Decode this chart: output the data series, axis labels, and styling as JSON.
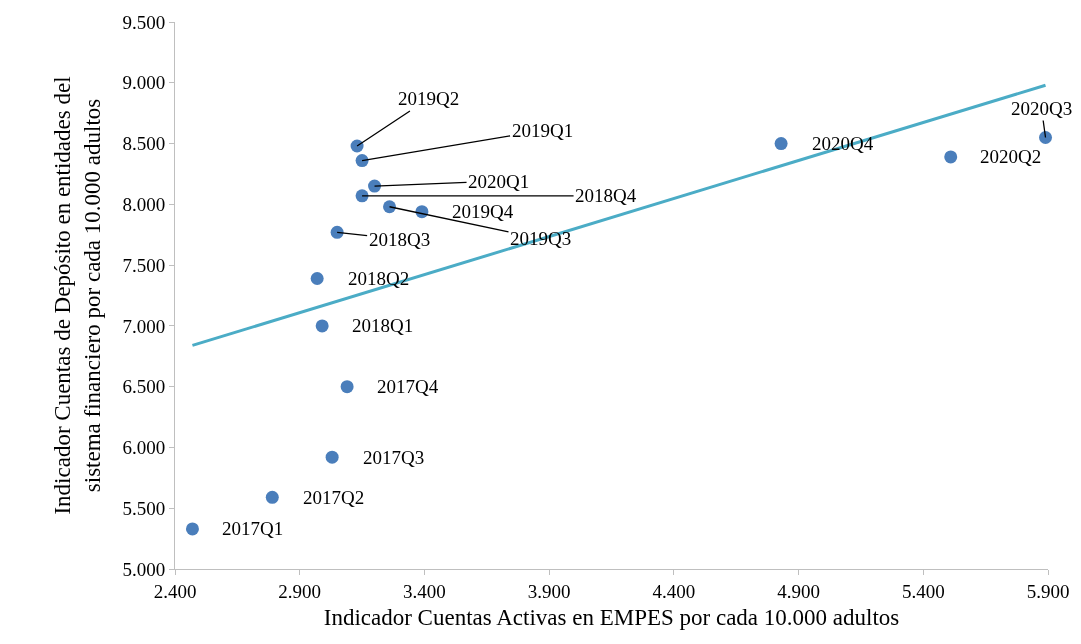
{
  "chart_data": {
    "type": "scatter",
    "xlabel": "Indicador Cuentas Activas en EMPES por cada 10.000 adultos",
    "ylabel": "Indicador Cuentas de Depósito en entidades del\nsistema financiero por cada 10.000 adultos",
    "xlim": [
      2.4,
      5.9
    ],
    "ylim": [
      5,
      9.5
    ],
    "xticks": [
      {
        "value": 2.4,
        "label": "2.400"
      },
      {
        "value": 2.9,
        "label": "2.900"
      },
      {
        "value": 3.4,
        "label": "3.400"
      },
      {
        "value": 3.9,
        "label": "3.900"
      },
      {
        "value": 4.4,
        "label": "4.400"
      },
      {
        "value": 4.9,
        "label": "4.900"
      },
      {
        "value": 5.4,
        "label": "5.400"
      },
      {
        "value": 5.9,
        "label": "5.900"
      }
    ],
    "yticks": [
      {
        "value": 5,
        "label": "5.000"
      },
      {
        "value": 5.5,
        "label": "5.500"
      },
      {
        "value": 6,
        "label": "6.000"
      },
      {
        "value": 6.5,
        "label": "6.500"
      },
      {
        "value": 7,
        "label": "7.000"
      },
      {
        "value": 7.5,
        "label": "7.500"
      },
      {
        "value": 8,
        "label": "8.000"
      },
      {
        "value": 8.5,
        "label": "8.500"
      },
      {
        "value": 9,
        "label": "9.000"
      },
      {
        "value": 9.5,
        "label": "9.500"
      }
    ],
    "grid": false,
    "marker": "circle",
    "series": [
      {
        "color": "#4a7ebb",
        "x": [
          2.47,
          2.79,
          3.03,
          3.09,
          2.99,
          2.97,
          3.05,
          3.15,
          3.15,
          3.13,
          3.26,
          3.39,
          3.2,
          5.51,
          5.89,
          4.83
        ],
        "values": [
          5.33,
          5.59,
          5.92,
          6.5,
          7.0,
          7.39,
          7.77,
          8.07,
          8.36,
          8.48,
          7.98,
          7.94,
          8.15,
          8.39,
          8.55,
          8.5
        ]
      },
      {
        "type": "line",
        "color": "#4bacc6",
        "line_style": "solid",
        "marker": "none",
        "x": [
          2.47,
          5.89
        ],
        "values": [
          6.84,
          8.98
        ]
      }
    ],
    "annotations": [
      {
        "text": "2017Q1",
        "x": 2.47,
        "y": 5.33
      },
      {
        "text": "2017Q2",
        "x": 2.79,
        "y": 5.59
      },
      {
        "text": "2017Q3",
        "x": 3.03,
        "y": 5.92
      },
      {
        "text": "2017Q4",
        "x": 3.09,
        "y": 6.5
      },
      {
        "text": "2018Q1",
        "x": 2.99,
        "y": 7.0
      },
      {
        "text": "2018Q2",
        "x": 2.97,
        "y": 7.39
      },
      {
        "text": "2018Q3",
        "x": 3.05,
        "y": 7.77
      },
      {
        "text": "2018Q4",
        "x": 3.15,
        "y": 8.07
      },
      {
        "text": "2019Q1",
        "x": 3.15,
        "y": 8.36
      },
      {
        "text": "2019Q2",
        "x": 3.13,
        "y": 8.48
      },
      {
        "text": "2019Q3",
        "x": 3.26,
        "y": 7.98
      },
      {
        "text": "2019Q4",
        "x": 3.39,
        "y": 7.94
      },
      {
        "text": "2020Q1",
        "x": 3.2,
        "y": 8.15
      },
      {
        "text": "2020Q2",
        "x": 5.51,
        "y": 8.39
      },
      {
        "text": "2020Q3",
        "x": 5.89,
        "y": 8.55
      },
      {
        "text": "2020Q4",
        "x": 4.83,
        "y": 8.5
      }
    ]
  }
}
